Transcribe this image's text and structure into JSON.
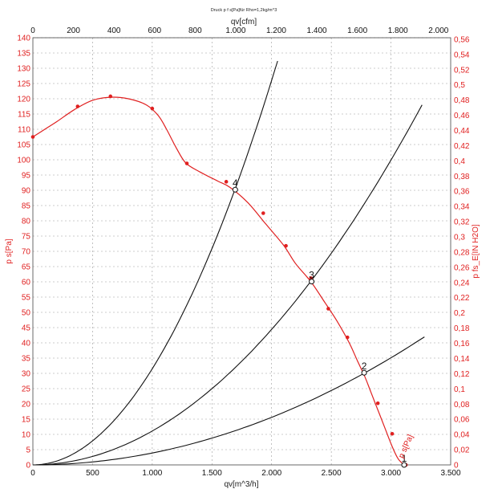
{
  "chart_data": {
    "type": "line",
    "title": "Druck p f s[Pa]für Rho=1,2kg/m^3",
    "xlabel": "qv[m^3/h]",
    "x2label": "qv[cfm]",
    "ylabel": "p s[Pa]",
    "y2label": "p fs_E[IN H2O]",
    "xlim": [
      0,
      3500
    ],
    "ylim": [
      0,
      140
    ],
    "x2lim": [
      0,
      2060
    ],
    "y2lim": [
      0,
      0.562
    ],
    "grid": true,
    "x_ticks": [
      0,
      500,
      1000,
      1500,
      2000,
      2500,
      3000,
      3500
    ],
    "x_tick_labels": [
      "0",
      "500",
      "1.000",
      "1.500",
      "2.000",
      "2.500",
      "3.000",
      "3.500"
    ],
    "x2_ticks": [
      0,
      200,
      400,
      600,
      800,
      1000,
      1200,
      1400,
      1600,
      1800,
      2000
    ],
    "x2_tick_labels": [
      "0",
      "200",
      "400",
      "600",
      "800",
      "1.000",
      "1.200",
      "1.400",
      "1.600",
      "1.800",
      "2.000"
    ],
    "y_ticks": [
      0,
      5,
      10,
      15,
      20,
      25,
      30,
      35,
      40,
      45,
      50,
      55,
      60,
      65,
      70,
      75,
      80,
      85,
      90,
      95,
      100,
      105,
      110,
      115,
      120,
      125,
      130,
      135,
      140
    ],
    "y_tick_labels": [
      "0",
      "5",
      "10",
      "15",
      "20",
      "25",
      "30",
      "35",
      "40",
      "45",
      "50",
      "55",
      "60",
      "65",
      "70",
      "75",
      "80",
      "85",
      "90",
      "95",
      "100",
      "105",
      "110",
      "115",
      "120",
      "125",
      "130",
      "135",
      "140"
    ],
    "y2_ticks": [
      0,
      0.02,
      0.04,
      0.06,
      0.08,
      0.1,
      0.12,
      0.14,
      0.16,
      0.18,
      0.2,
      0.22,
      0.24,
      0.26,
      0.28,
      0.3,
      0.32,
      0.34,
      0.36,
      0.38,
      0.4,
      0.42,
      0.44,
      0.46,
      0.48,
      0.5,
      0.52,
      0.54,
      0.56
    ],
    "y2_tick_labels": [
      "0",
      "0,02",
      "0,04",
      "0,06",
      "0,08",
      "0,1",
      "0,12",
      "0,14",
      "0,16",
      "0,18",
      "0,2",
      "0,22",
      "0,24",
      "0,26",
      "0,28",
      "0,3",
      "0,32",
      "0,34",
      "0,36",
      "0,38",
      "0,4",
      "0,42",
      "0,44",
      "0,46",
      "0,48",
      "0,5",
      "0,52",
      "0,54",
      "0,56"
    ],
    "fan_curve": {
      "label": "p s[Pa]",
      "color": "#e02020",
      "curve": [
        [
          0,
          107.5
        ],
        [
          100,
          110
        ],
        [
          200,
          112.5
        ],
        [
          350,
          116.5
        ],
        [
          500,
          119.5
        ],
        [
          650,
          120.5
        ],
        [
          800,
          120
        ],
        [
          950,
          118
        ],
        [
          1050,
          114.5
        ],
        [
          1120,
          110
        ],
        [
          1200,
          104
        ],
        [
          1280,
          99
        ],
        [
          1400,
          96
        ],
        [
          1550,
          93
        ],
        [
          1650,
          91
        ],
        [
          1800,
          86
        ],
        [
          1950,
          79
        ],
        [
          2100,
          72
        ],
        [
          2200,
          66
        ],
        [
          2330,
          60
        ],
        [
          2450,
          53
        ],
        [
          2550,
          47
        ],
        [
          2650,
          40
        ],
        [
          2720,
          34
        ],
        [
          2780,
          29
        ],
        [
          2830,
          24
        ],
        [
          2900,
          17
        ],
        [
          2960,
          11
        ],
        [
          3010,
          6
        ],
        [
          3060,
          2
        ],
        [
          3110,
          0
        ]
      ],
      "markers": [
        [
          0,
          107.5
        ],
        [
          375,
          117.5
        ],
        [
          650,
          120.8
        ],
        [
          1000,
          116.8
        ],
        [
          1290,
          98.8
        ],
        [
          1620,
          92.8
        ],
        [
          1930,
          82.5
        ],
        [
          2120,
          71.8
        ],
        [
          2330,
          61.2
        ],
        [
          2475,
          51.2
        ],
        [
          2635,
          41.8
        ],
        [
          2890,
          20.2
        ],
        [
          3010,
          10.2
        ],
        [
          3125,
          0
        ]
      ]
    },
    "system_curves": [
      {
        "name": "4",
        "color": "#111111",
        "k": 3.15e-05,
        "x_end": 2050
      },
      {
        "name": "3",
        "color": "#111111",
        "k": 1.11e-05,
        "x_end": 3260
      },
      {
        "name": "2",
        "color": "#111111",
        "k": 3.9e-06,
        "x_end": 3280
      }
    ],
    "operating_points": [
      {
        "label": "4",
        "x": 1695,
        "y": 90.2
      },
      {
        "label": "3",
        "x": 2335,
        "y": 60.1
      },
      {
        "label": "2",
        "x": 2775,
        "y": 30.2
      },
      {
        "label": "1",
        "x": 3110,
        "y": 0
      }
    ],
    "curve_label": "p s[Pa]"
  }
}
